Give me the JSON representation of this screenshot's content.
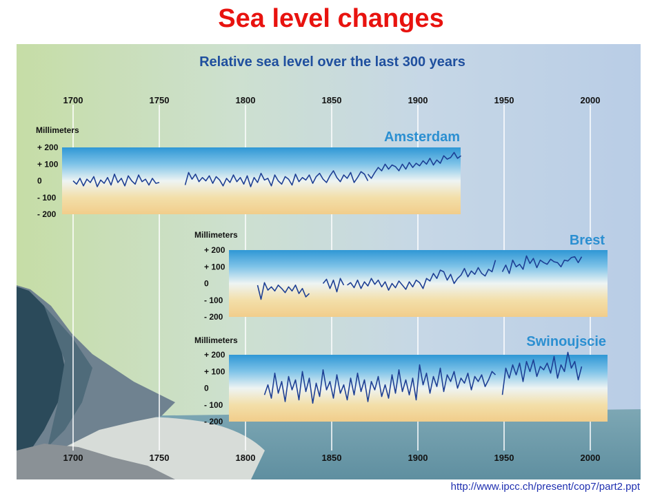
{
  "slide": {
    "title": "Sea level changes",
    "source_url": "http://www.ipcc.ch/present/cop7/part2.ppt"
  },
  "chart_data": {
    "type": "line",
    "title": "Relative sea level over the last 300 years",
    "x_ticks": [
      "1700",
      "1750",
      "1800",
      "1850",
      "1900",
      "1950",
      "2000"
    ],
    "xlim": [
      1700,
      2000
    ],
    "ylim": [
      -200,
      200
    ],
    "y_ticks": [
      "+ 200",
      "+ 100",
      "0",
      "- 100",
      "- 200"
    ],
    "ylabel": "Millimeters",
    "colors": {
      "line": "#1d3f94",
      "title": "#1f4f9e",
      "station": "#2b8fd1"
    },
    "panels": [
      {
        "name": "Amsterdam",
        "xlim": [
          1700,
          1925
        ],
        "segments": [
          {
            "x": [
              1700,
              1702,
              1704,
              1706,
              1708,
              1710,
              1712,
              1714,
              1716,
              1718,
              1720,
              1722,
              1724,
              1726,
              1728,
              1730,
              1732,
              1734,
              1736,
              1738,
              1740,
              1742,
              1744,
              1746,
              1748,
              1750
            ],
            "y": [
              0,
              -20,
              15,
              -30,
              10,
              -10,
              25,
              -35,
              5,
              -15,
              20,
              -25,
              40,
              -10,
              15,
              -30,
              30,
              0,
              -20,
              35,
              -5,
              10,
              -25,
              15,
              -15,
              -10
            ]
          },
          {
            "x": [
              1765,
              1767,
              1769,
              1771,
              1773,
              1775,
              1777,
              1779,
              1781,
              1783,
              1785,
              1787,
              1789,
              1791,
              1793,
              1795,
              1797,
              1799,
              1801,
              1803,
              1805,
              1807,
              1809,
              1811,
              1813,
              1815,
              1817,
              1819,
              1821,
              1823,
              1825,
              1827,
              1829,
              1831,
              1833,
              1835,
              1837,
              1839,
              1841,
              1843,
              1845,
              1847,
              1849,
              1851,
              1853,
              1855,
              1857,
              1859,
              1861,
              1863,
              1865,
              1867,
              1869,
              1871
            ],
            "y": [
              -25,
              50,
              10,
              40,
              -5,
              20,
              0,
              30,
              -15,
              25,
              5,
              -30,
              15,
              -10,
              35,
              -5,
              20,
              -20,
              30,
              -35,
              20,
              -10,
              45,
              5,
              15,
              -30,
              35,
              0,
              -20,
              25,
              10,
              -25,
              40,
              -5,
              20,
              5,
              35,
              -15,
              25,
              45,
              10,
              -10,
              30,
              60,
              20,
              -5,
              35,
              15,
              50,
              -10,
              20,
              55,
              40,
              0
            ]
          },
          {
            "x": [
              1871,
              1873,
              1875,
              1877,
              1879,
              1881,
              1883,
              1885,
              1887,
              1889,
              1891,
              1893,
              1895,
              1897,
              1899,
              1901,
              1903,
              1905,
              1907,
              1909,
              1911,
              1913,
              1915,
              1917,
              1919,
              1921,
              1923,
              1925
            ],
            "y": [
              40,
              15,
              50,
              80,
              60,
              100,
              70,
              95,
              85,
              60,
              100,
              70,
              110,
              80,
              105,
              90,
              120,
              100,
              135,
              95,
              125,
              105,
              150,
              130,
              140,
              170,
              135,
              150
            ]
          }
        ]
      },
      {
        "name": "Brest",
        "xlim": [
          1800,
          2000
        ],
        "segments": [
          {
            "x": [
              1807,
              1809,
              1811,
              1813,
              1815,
              1817,
              1819,
              1821,
              1823,
              1825,
              1827,
              1829,
              1831,
              1833,
              1835,
              1837
            ],
            "y": [
              -10,
              -95,
              5,
              -40,
              -20,
              -45,
              -10,
              -30,
              -55,
              -20,
              -45,
              -10,
              -60,
              -30,
              -80,
              -60
            ]
          },
          {
            "x": [
              1845,
              1847,
              1849,
              1851,
              1853,
              1855,
              1857
            ],
            "y": [
              0,
              25,
              -30,
              20,
              -50,
              30,
              -10
            ]
          },
          {
            "x": [
              1859,
              1861,
              1863,
              1865,
              1867,
              1869,
              1871,
              1873,
              1875,
              1877,
              1879,
              1881,
              1883,
              1885,
              1887,
              1889,
              1891,
              1893,
              1895,
              1897,
              1899,
              1901,
              1903,
              1905,
              1907,
              1909,
              1911,
              1913,
              1915,
              1917,
              1919,
              1921,
              1923,
              1925,
              1927,
              1929,
              1931,
              1933,
              1935,
              1937,
              1939,
              1941,
              1943,
              1945
            ],
            "y": [
              -10,
              5,
              -25,
              20,
              -30,
              10,
              -15,
              30,
              -5,
              20,
              -20,
              10,
              -40,
              0,
              -25,
              15,
              -10,
              -35,
              10,
              -20,
              20,
              5,
              -30,
              30,
              15,
              60,
              30,
              80,
              70,
              20,
              55,
              0,
              30,
              50,
              90,
              40,
              75,
              55,
              95,
              60,
              45,
              85,
              70,
              140
            ]
          },
          {
            "x": [
              1949,
              1951,
              1953,
              1955,
              1957,
              1959,
              1961,
              1963,
              1965,
              1967,
              1969,
              1971,
              1973,
              1975,
              1977,
              1979,
              1981,
              1983,
              1985,
              1987,
              1989,
              1991,
              1993,
              1995
            ],
            "y": [
              70,
              110,
              60,
              140,
              100,
              115,
              85,
              165,
              120,
              150,
              95,
              140,
              125,
              115,
              145,
              130,
              125,
              100,
              140,
              135,
              155,
              160,
              125,
              160
            ]
          }
        ]
      },
      {
        "name": "Swinoujscie",
        "xlim": [
          1800,
          2000
        ],
        "segments": [
          {
            "x": [
              1811,
              1813,
              1815,
              1817,
              1819,
              1821,
              1823,
              1825,
              1827,
              1829,
              1831,
              1833,
              1835,
              1837,
              1839,
              1841,
              1843,
              1845,
              1847,
              1849,
              1851,
              1853,
              1855,
              1857,
              1859,
              1861,
              1863,
              1865,
              1867,
              1869,
              1871,
              1873,
              1875,
              1877,
              1879,
              1881,
              1883,
              1885,
              1887,
              1889,
              1891,
              1893,
              1895,
              1897,
              1899,
              1901,
              1903,
              1905,
              1907,
              1909,
              1911,
              1913,
              1915,
              1917,
              1919,
              1921,
              1923,
              1925,
              1927,
              1929,
              1931,
              1933,
              1935,
              1937,
              1939,
              1941,
              1943,
              1945
            ],
            "y": [
              -40,
              20,
              -60,
              90,
              -30,
              40,
              -80,
              70,
              -10,
              50,
              -70,
              100,
              -20,
              60,
              -90,
              30,
              -50,
              110,
              -10,
              40,
              -60,
              80,
              -30,
              20,
              -70,
              60,
              -40,
              90,
              -20,
              50,
              -80,
              40,
              -10,
              70,
              -50,
              20,
              -60,
              80,
              -30,
              110,
              -20,
              50,
              -40,
              60,
              -70,
              140,
              20,
              90,
              -30,
              70,
              10,
              120,
              -20,
              80,
              40,
              100,
              0,
              60,
              30,
              90,
              -10,
              70,
              40,
              80,
              10,
              50,
              100,
              80
            ]
          },
          {
            "x": [
              1949,
              1951,
              1953,
              1955,
              1957,
              1959,
              1961,
              1963,
              1965,
              1967,
              1969,
              1971,
              1973,
              1975,
              1977,
              1979,
              1981,
              1983,
              1985,
              1987,
              1989,
              1991,
              1993,
              1995
            ],
            "y": [
              -40,
              120,
              60,
              140,
              80,
              150,
              40,
              160,
              100,
              170,
              70,
              130,
              110,
              150,
              90,
              190,
              60,
              140,
              100,
              215,
              120,
              160,
              50,
              130
            ]
          }
        ]
      }
    ]
  }
}
